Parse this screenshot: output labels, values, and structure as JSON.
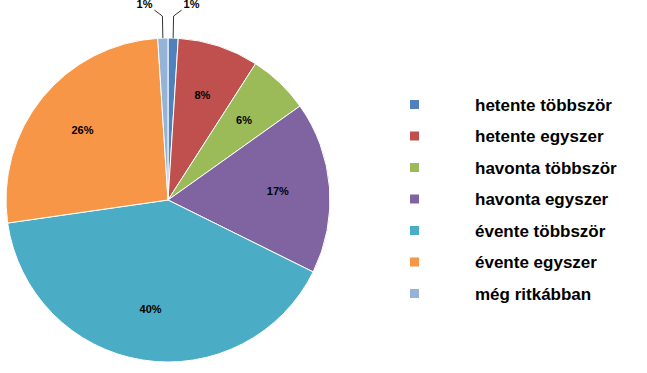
{
  "chart_data": {
    "type": "pie",
    "categories": [
      "hetente többször",
      "hetente egyszer",
      "havonta többször",
      "havonta egyszer",
      "évente többször",
      "évente egyszer",
      "még ritkábban"
    ],
    "values": [
      1,
      8,
      6,
      17,
      40,
      26,
      1
    ],
    "value_labels": [
      "1%",
      "8%",
      "6%",
      "17%",
      "40%",
      "26%",
      "1%"
    ],
    "colors": [
      "#4f81bd",
      "#c0504d",
      "#9bbb59",
      "#8064a2",
      "#4bacc6",
      "#f79646",
      "#95b3d7"
    ],
    "data_labels": true,
    "legend": "right"
  }
}
